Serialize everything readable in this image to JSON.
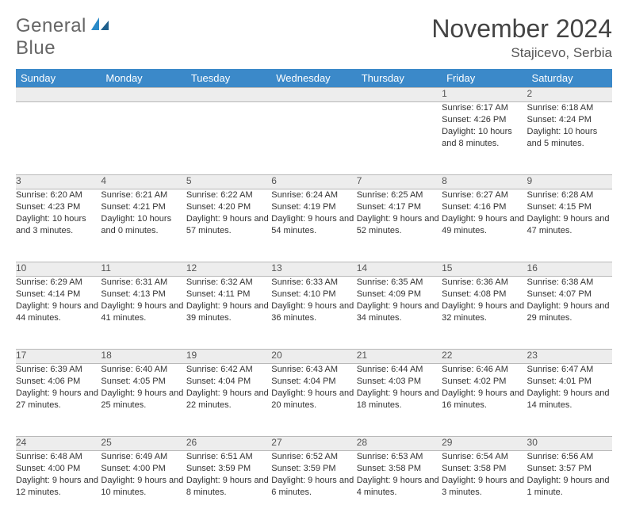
{
  "logo": {
    "main": "General",
    "accent": "Blue"
  },
  "title": "November 2024",
  "location": "Stajicevo, Serbia",
  "colors": {
    "header_bg": "#3b89c9",
    "daynum_bg": "#ededed",
    "border": "#b8b8b8",
    "logo_gray": "#666666",
    "logo_blue": "#2a8ac8"
  },
  "weekdays": [
    "Sunday",
    "Monday",
    "Tuesday",
    "Wednesday",
    "Thursday",
    "Friday",
    "Saturday"
  ],
  "weeks": [
    [
      null,
      null,
      null,
      null,
      null,
      {
        "n": "1",
        "sr": "Sunrise: 6:17 AM",
        "ss": "Sunset: 4:26 PM",
        "dl": "Daylight: 10 hours and 8 minutes."
      },
      {
        "n": "2",
        "sr": "Sunrise: 6:18 AM",
        "ss": "Sunset: 4:24 PM",
        "dl": "Daylight: 10 hours and 5 minutes."
      }
    ],
    [
      {
        "n": "3",
        "sr": "Sunrise: 6:20 AM",
        "ss": "Sunset: 4:23 PM",
        "dl": "Daylight: 10 hours and 3 minutes."
      },
      {
        "n": "4",
        "sr": "Sunrise: 6:21 AM",
        "ss": "Sunset: 4:21 PM",
        "dl": "Daylight: 10 hours and 0 minutes."
      },
      {
        "n": "5",
        "sr": "Sunrise: 6:22 AM",
        "ss": "Sunset: 4:20 PM",
        "dl": "Daylight: 9 hours and 57 minutes."
      },
      {
        "n": "6",
        "sr": "Sunrise: 6:24 AM",
        "ss": "Sunset: 4:19 PM",
        "dl": "Daylight: 9 hours and 54 minutes."
      },
      {
        "n": "7",
        "sr": "Sunrise: 6:25 AM",
        "ss": "Sunset: 4:17 PM",
        "dl": "Daylight: 9 hours and 52 minutes."
      },
      {
        "n": "8",
        "sr": "Sunrise: 6:27 AM",
        "ss": "Sunset: 4:16 PM",
        "dl": "Daylight: 9 hours and 49 minutes."
      },
      {
        "n": "9",
        "sr": "Sunrise: 6:28 AM",
        "ss": "Sunset: 4:15 PM",
        "dl": "Daylight: 9 hours and 47 minutes."
      }
    ],
    [
      {
        "n": "10",
        "sr": "Sunrise: 6:29 AM",
        "ss": "Sunset: 4:14 PM",
        "dl": "Daylight: 9 hours and 44 minutes."
      },
      {
        "n": "11",
        "sr": "Sunrise: 6:31 AM",
        "ss": "Sunset: 4:13 PM",
        "dl": "Daylight: 9 hours and 41 minutes."
      },
      {
        "n": "12",
        "sr": "Sunrise: 6:32 AM",
        "ss": "Sunset: 4:11 PM",
        "dl": "Daylight: 9 hours and 39 minutes."
      },
      {
        "n": "13",
        "sr": "Sunrise: 6:33 AM",
        "ss": "Sunset: 4:10 PM",
        "dl": "Daylight: 9 hours and 36 minutes."
      },
      {
        "n": "14",
        "sr": "Sunrise: 6:35 AM",
        "ss": "Sunset: 4:09 PM",
        "dl": "Daylight: 9 hours and 34 minutes."
      },
      {
        "n": "15",
        "sr": "Sunrise: 6:36 AM",
        "ss": "Sunset: 4:08 PM",
        "dl": "Daylight: 9 hours and 32 minutes."
      },
      {
        "n": "16",
        "sr": "Sunrise: 6:38 AM",
        "ss": "Sunset: 4:07 PM",
        "dl": "Daylight: 9 hours and 29 minutes."
      }
    ],
    [
      {
        "n": "17",
        "sr": "Sunrise: 6:39 AM",
        "ss": "Sunset: 4:06 PM",
        "dl": "Daylight: 9 hours and 27 minutes."
      },
      {
        "n": "18",
        "sr": "Sunrise: 6:40 AM",
        "ss": "Sunset: 4:05 PM",
        "dl": "Daylight: 9 hours and 25 minutes."
      },
      {
        "n": "19",
        "sr": "Sunrise: 6:42 AM",
        "ss": "Sunset: 4:04 PM",
        "dl": "Daylight: 9 hours and 22 minutes."
      },
      {
        "n": "20",
        "sr": "Sunrise: 6:43 AM",
        "ss": "Sunset: 4:04 PM",
        "dl": "Daylight: 9 hours and 20 minutes."
      },
      {
        "n": "21",
        "sr": "Sunrise: 6:44 AM",
        "ss": "Sunset: 4:03 PM",
        "dl": "Daylight: 9 hours and 18 minutes."
      },
      {
        "n": "22",
        "sr": "Sunrise: 6:46 AM",
        "ss": "Sunset: 4:02 PM",
        "dl": "Daylight: 9 hours and 16 minutes."
      },
      {
        "n": "23",
        "sr": "Sunrise: 6:47 AM",
        "ss": "Sunset: 4:01 PM",
        "dl": "Daylight: 9 hours and 14 minutes."
      }
    ],
    [
      {
        "n": "24",
        "sr": "Sunrise: 6:48 AM",
        "ss": "Sunset: 4:00 PM",
        "dl": "Daylight: 9 hours and 12 minutes."
      },
      {
        "n": "25",
        "sr": "Sunrise: 6:49 AM",
        "ss": "Sunset: 4:00 PM",
        "dl": "Daylight: 9 hours and 10 minutes."
      },
      {
        "n": "26",
        "sr": "Sunrise: 6:51 AM",
        "ss": "Sunset: 3:59 PM",
        "dl": "Daylight: 9 hours and 8 minutes."
      },
      {
        "n": "27",
        "sr": "Sunrise: 6:52 AM",
        "ss": "Sunset: 3:59 PM",
        "dl": "Daylight: 9 hours and 6 minutes."
      },
      {
        "n": "28",
        "sr": "Sunrise: 6:53 AM",
        "ss": "Sunset: 3:58 PM",
        "dl": "Daylight: 9 hours and 4 minutes."
      },
      {
        "n": "29",
        "sr": "Sunrise: 6:54 AM",
        "ss": "Sunset: 3:58 PM",
        "dl": "Daylight: 9 hours and 3 minutes."
      },
      {
        "n": "30",
        "sr": "Sunrise: 6:56 AM",
        "ss": "Sunset: 3:57 PM",
        "dl": "Daylight: 9 hours and 1 minute."
      }
    ]
  ]
}
